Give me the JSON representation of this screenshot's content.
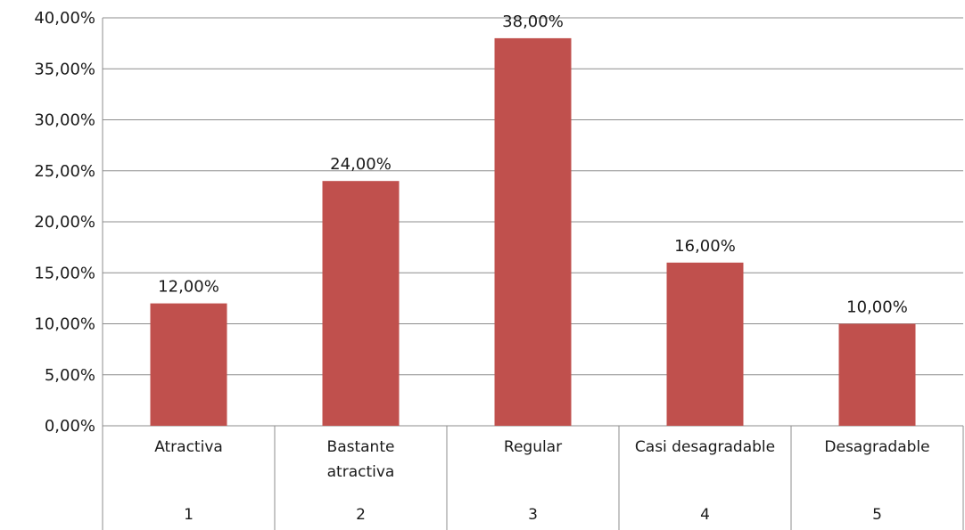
{
  "chart_data": {
    "type": "bar",
    "categories": [
      "Atractiva",
      "Bastante atractiva",
      "Regular",
      "Casi desagradable",
      "Desagradable"
    ],
    "category_lines": [
      [
        "Atractiva"
      ],
      [
        "Bastante",
        "atractiva"
      ],
      [
        "Regular"
      ],
      [
        "Casi desagradable"
      ],
      [
        "Desagradable"
      ]
    ],
    "category_numbers": [
      "1",
      "2",
      "3",
      "4",
      "5"
    ],
    "values": [
      0.12,
      0.24,
      0.38,
      0.16,
      0.1
    ],
    "data_labels": [
      "12,00%",
      "24,00%",
      "38,00%",
      "16,00%",
      "10,00%"
    ],
    "y_ticks": [
      0,
      0.05,
      0.1,
      0.15,
      0.2,
      0.25,
      0.3,
      0.35,
      0.4
    ],
    "y_tick_labels": [
      "0,00%",
      "5,00%",
      "10,00%",
      "15,00%",
      "20,00%",
      "25,00%",
      "30,00%",
      "35,00%",
      "40,00%"
    ],
    "ylim": [
      0,
      0.4
    ],
    "title": "",
    "xlabel": "",
    "ylabel": "",
    "grid": true,
    "bar_color": "#c0504d"
  }
}
